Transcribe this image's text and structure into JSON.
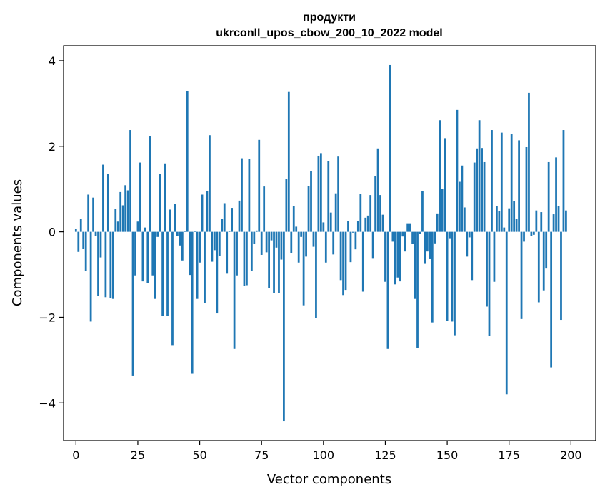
{
  "chart_data": {
    "type": "bar",
    "title": "продукти",
    "subtitle": "ukrconll_upos_cbow_200_10_2022 model",
    "xlabel": "Vector components",
    "ylabel": "Components values",
    "xlim": [
      -5,
      210
    ],
    "ylim": [
      -4.88,
      4.35
    ],
    "xticks": [
      0,
      25,
      50,
      75,
      100,
      125,
      150,
      175,
      200
    ],
    "yticks": [
      -4,
      -2,
      0,
      2,
      4
    ],
    "xtick_labels": [
      "0",
      "25",
      "50",
      "75",
      "100",
      "125",
      "150",
      "175",
      "200"
    ],
    "ytick_labels": [
      "−4",
      "−2",
      "0",
      "2",
      "4"
    ],
    "bar_color": "#1f77b4",
    "grid": false,
    "values": [
      0.07,
      -0.47,
      0.3,
      -0.4,
      -0.92,
      0.87,
      -2.1,
      0.8,
      -0.1,
      -1.5,
      -0.6,
      1.57,
      -1.53,
      1.36,
      -1.55,
      -1.57,
      0.54,
      0.24,
      0.93,
      0.62,
      1.09,
      0.97,
      2.38,
      -3.36,
      -1.02,
      0.24,
      1.62,
      -1.16,
      0.1,
      -1.2,
      2.23,
      -1.02,
      -1.57,
      -0.12,
      1.35,
      -1.96,
      1.6,
      -1.97,
      0.52,
      -2.65,
      0.66,
      -0.1,
      -0.32,
      -0.67,
      0.01,
      3.29,
      -1.01,
      -3.32,
      0.02,
      -1.57,
      -0.72,
      0.87,
      -1.66,
      0.95,
      2.26,
      -0.7,
      -0.43,
      -1.91,
      -0.56,
      0.31,
      0.67,
      -0.98,
      0.02,
      0.56,
      -2.74,
      -1.02,
      0.73,
      1.72,
      -1.27,
      -1.25,
      1.7,
      -0.92,
      -0.29,
      0.03,
      2.15,
      -0.54,
      1.06,
      -0.48,
      -1.32,
      -0.2,
      -1.43,
      -0.37,
      -1.43,
      -0.65,
      -4.43,
      1.23,
      3.27,
      -0.5,
      0.61,
      0.12,
      -0.72,
      -0.12,
      -1.72,
      -0.58,
      1.07,
      1.42,
      -0.35,
      -2.01,
      1.78,
      1.84,
      0.22,
      -0.72,
      1.65,
      0.45,
      -0.53,
      0.9,
      1.76,
      -1.13,
      -1.48,
      -1.36,
      0.26,
      -0.71,
      -0.02,
      -0.41,
      0.25,
      0.88,
      -1.4,
      0.33,
      0.38,
      0.86,
      -0.63,
      1.3,
      1.95,
      0.86,
      0.4,
      -1.17,
      -2.74,
      3.9,
      -0.23,
      -1.23,
      -1.07,
      -1.16,
      -0.11,
      -0.46,
      0.2,
      0.2,
      -0.28,
      -1.57,
      -2.71,
      -0.05,
      0.96,
      -0.75,
      -0.46,
      -0.64,
      -2.12,
      -0.27,
      0.43,
      2.61,
      1.01,
      2.19,
      -2.08,
      -0.15,
      -2.1,
      -2.42,
      2.85,
      1.17,
      1.55,
      0.57,
      -0.58,
      -0.13,
      -1.13,
      1.62,
      1.95,
      2.61,
      1.96,
      1.63,
      -1.75,
      -2.43,
      2.38,
      -1.17,
      0.6,
      0.48,
      2.32,
      0.1,
      -3.8,
      0.55,
      2.28,
      0.72,
      0.3,
      2.14,
      -2.04,
      -0.23,
      1.98,
      3.25,
      -0.09,
      -0.07,
      0.5,
      -1.65,
      0.46,
      -1.37,
      -0.86,
      1.63,
      -3.17,
      0.41,
      1.74,
      0.61,
      -2.06,
      2.38,
      0.5
    ]
  }
}
